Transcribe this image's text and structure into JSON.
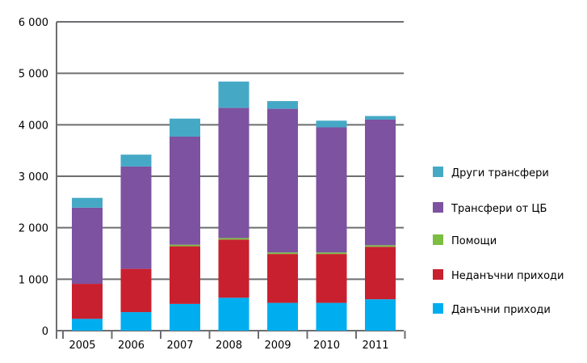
{
  "chart_data": {
    "type": "bar",
    "stacked": true,
    "categories": [
      "2005",
      "2006",
      "2007",
      "2008",
      "2009",
      "2010",
      "2011"
    ],
    "ylim": [
      0,
      6000
    ],
    "yticks": [
      0,
      1000,
      2000,
      3000,
      4000,
      5000,
      6000
    ],
    "ytick_labels": [
      "0",
      "1 000",
      "2 000",
      "3 000",
      "4 000",
      "5 000",
      "6 000"
    ],
    "grid": "horizontal",
    "legend_position": "right",
    "series": [
      {
        "name": "Данъчни приходи",
        "color": "#00aeef",
        "values": [
          230,
          360,
          520,
          640,
          540,
          540,
          610
        ]
      },
      {
        "name": "Неданъчни приходи",
        "color": "#c8202f",
        "values": [
          680,
          840,
          1120,
          1130,
          950,
          950,
          1020
        ]
      },
      {
        "name": "Помощи",
        "color": "#7cbd42",
        "values": [
          0,
          0,
          30,
          30,
          30,
          30,
          30
        ]
      },
      {
        "name": "Трансфери от ЦБ",
        "color": "#7d52a0",
        "values": [
          1480,
          1990,
          2100,
          2530,
          2790,
          2430,
          2440
        ]
      },
      {
        "name": "Други трансфери",
        "color": "#45a9c6",
        "values": [
          190,
          230,
          350,
          510,
          150,
          130,
          70
        ]
      }
    ],
    "legend_order": [
      "Други трансфери",
      "Трансфери от ЦБ",
      "Помощи",
      "Неданъчни приходи",
      "Данъчни приходи"
    ]
  }
}
